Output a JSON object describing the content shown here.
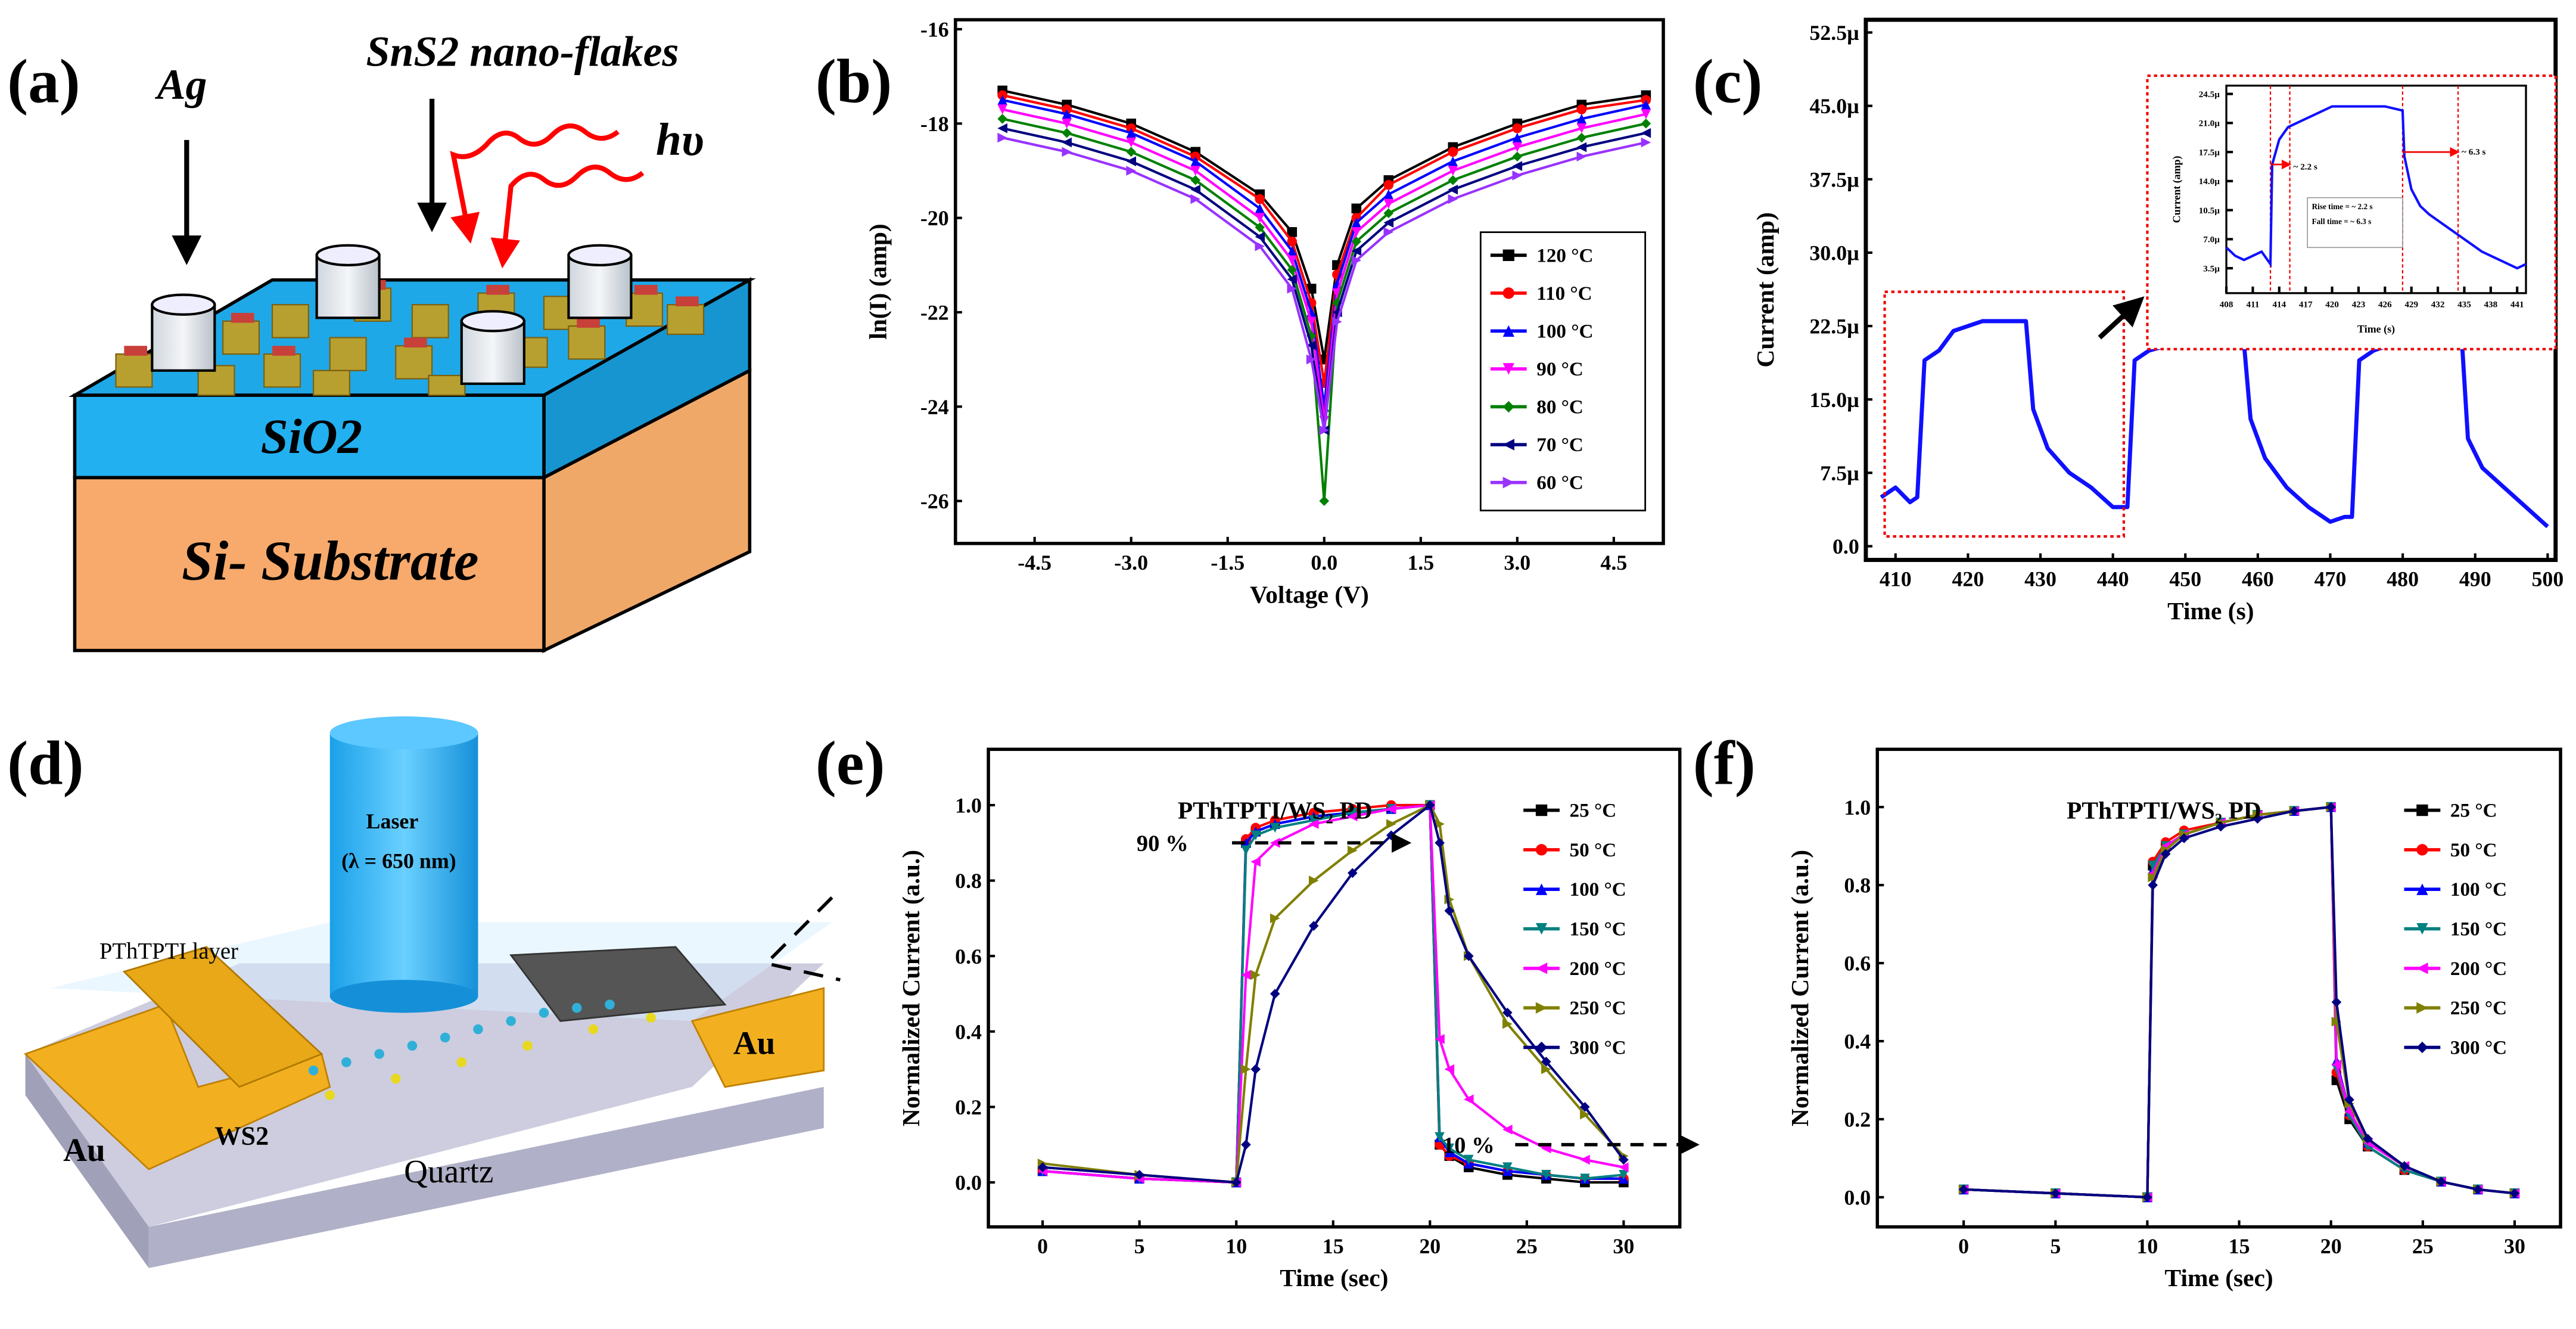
{
  "panel_labels": [
    "(a)",
    "(b)",
    "(c)",
    "(d)",
    "(e)",
    "(f)"
  ],
  "diagram_a": {
    "ag": "Ag",
    "flakes": "SnS2 nano-flakes",
    "light": "hυ",
    "oxide": "SiO2",
    "substrate": "Si- Substrate"
  },
  "diagram_d": {
    "laser": "Laser",
    "wavelength": "(λ = 650 nm)",
    "layer": "PThTPTI layer",
    "au_left": "Au",
    "au_right": "Au",
    "ws2": "WS2",
    "quartz": "Quartz"
  },
  "chart_data": [
    {
      "panel": "b",
      "type": "line",
      "xlabel": "Voltage (V)",
      "ylabel": "ln(I) (amp)",
      "xticks": [
        "-4.5",
        "-3.0",
        "-1.5",
        "0.0",
        "1.5",
        "3.0",
        "4.5"
      ],
      "yticks": [
        "-16",
        "-18",
        "-20",
        "-22",
        "-24",
        "-26"
      ],
      "xlim": [
        -5.73,
        5.27
      ],
      "ylim": [
        -26.9,
        -15.8
      ],
      "legend_position": "center-right",
      "x": [
        -5,
        -4,
        -3,
        -2,
        -1,
        -0.5,
        -0.2,
        0,
        0.2,
        0.5,
        1,
        2,
        3,
        4,
        5
      ],
      "series": [
        {
          "name": "120 °C",
          "color": "#000000",
          "marker": "square",
          "values": [
            -17.3,
            -17.6,
            -18.0,
            -18.6,
            -19.5,
            -20.3,
            -21.5,
            -23.0,
            -21.0,
            -19.8,
            -19.2,
            -18.5,
            -18.0,
            -17.6,
            -17.4
          ]
        },
        {
          "name": "110 °C",
          "color": "#ff0000",
          "marker": "circle",
          "values": [
            -17.4,
            -17.7,
            -18.1,
            -18.7,
            -19.6,
            -20.5,
            -21.8,
            -23.5,
            -21.2,
            -20.0,
            -19.3,
            -18.6,
            -18.1,
            -17.7,
            -17.5
          ]
        },
        {
          "name": "100 °C",
          "color": "#0000ff",
          "marker": "triangle-up",
          "values": [
            -17.5,
            -17.8,
            -18.2,
            -18.8,
            -19.8,
            -20.7,
            -22.0,
            -24.0,
            -21.4,
            -20.1,
            -19.5,
            -18.8,
            -18.3,
            -17.9,
            -17.6
          ]
        },
        {
          "name": "90 °C",
          "color": "#ff00ff",
          "marker": "triangle-down",
          "values": [
            -17.7,
            -18.0,
            -18.4,
            -19.0,
            -20.0,
            -20.9,
            -22.2,
            -24.3,
            -21.6,
            -20.3,
            -19.7,
            -19.0,
            -18.5,
            -18.1,
            -17.8
          ]
        },
        {
          "name": "80 °C",
          "color": "#008000",
          "marker": "diamond",
          "values": [
            -17.9,
            -18.2,
            -18.6,
            -19.2,
            -20.2,
            -21.1,
            -22.5,
            -26.0,
            -21.8,
            -20.5,
            -19.9,
            -19.2,
            -18.7,
            -18.3,
            -18.0
          ]
        },
        {
          "name": "70 °C",
          "color": "#000080",
          "marker": "triangle-left",
          "values": [
            -18.1,
            -18.4,
            -18.8,
            -19.4,
            -20.4,
            -21.3,
            -22.7,
            -24.5,
            -22.0,
            -20.7,
            -20.1,
            -19.4,
            -18.9,
            -18.5,
            -18.2
          ]
        },
        {
          "name": "60 °C",
          "color": "#9932ff",
          "marker": "triangle-right",
          "values": [
            -18.3,
            -18.6,
            -19.0,
            -19.6,
            -20.6,
            -21.5,
            -23.0,
            -24.5,
            -22.2,
            -20.9,
            -20.3,
            -19.6,
            -19.1,
            -18.7,
            -18.4
          ]
        }
      ]
    },
    {
      "panel": "c",
      "type": "line",
      "xlabel": "Time (s)",
      "ylabel": "Current (amp)",
      "xticks": [
        "410",
        "420",
        "430",
        "440",
        "450",
        "460",
        "470",
        "480",
        "490",
        "500"
      ],
      "yticks": [
        "0.0",
        "7.5µ",
        "15.0µ",
        "22.5µ",
        "30.0µ",
        "37.5µ",
        "45.0µ",
        "52.5µ"
      ],
      "xlim": [
        405.9,
        501.1
      ],
      "ylim": [
        -1.4,
        53.8
      ],
      "series": [
        {
          "name": "photocurrent",
          "color": "#1010ff",
          "x": [
            408,
            410,
            412,
            413,
            414,
            416,
            418,
            422,
            426,
            428,
            429,
            431,
            434,
            437,
            440,
            442,
            443,
            445,
            450,
            455,
            458,
            459,
            461,
            464,
            467,
            470,
            472,
            473,
            474,
            476,
            480,
            485,
            488,
            489,
            491,
            494,
            497,
            500
          ],
          "values": [
            5,
            6,
            4.5,
            5,
            19,
            20,
            22,
            23,
            23,
            23,
            14,
            10,
            7.5,
            6,
            4,
            4,
            19,
            20,
            21,
            21.5,
            21.5,
            13,
            9,
            6,
            4,
            2.5,
            3,
            3,
            19,
            20,
            21,
            22,
            23,
            11,
            8,
            6,
            4,
            2
          ]
        }
      ],
      "annotation": "inset shows region 408–441 s",
      "inset": {
        "xlabel": "Time (s)",
        "ylabel": "Current (amp)",
        "xticks": [
          "408",
          "411",
          "414",
          "417",
          "420",
          "423",
          "426",
          "429",
          "432",
          "435",
          "438",
          "441"
        ],
        "yticks": [
          "3.5µ",
          "7.0µ",
          "10.5µ",
          "14.0µ",
          "17.5µ",
          "21.0µ",
          "24.5µ"
        ],
        "xlim": [
          408,
          442
        ],
        "ylim": [
          0.5,
          25.5
        ],
        "x": [
          408,
          409,
          410,
          411,
          412,
          413,
          413.2,
          414,
          415,
          416,
          417,
          418,
          420,
          423,
          426,
          428,
          428.2,
          429,
          430,
          431,
          433,
          435,
          437,
          439,
          441,
          442
        ],
        "values": [
          6,
          5,
          4.5,
          5,
          5.5,
          4,
          16,
          19,
          20.5,
          21,
          21.5,
          22,
          23,
          23,
          23,
          22.5,
          17,
          13,
          11,
          10,
          8.5,
          7,
          5.5,
          4.5,
          3.5,
          4
        ],
        "rise_label": "~ 2.2 s",
        "fall_label": "~ 6.3 s",
        "box_lines": [
          "Rise time = ~ 2.2 s",
          "Fall time = ~ 6.3 s"
        ],
        "markers_x": [
          413,
          415.2,
          428,
          434.3
        ]
      }
    },
    {
      "panel": "e",
      "type": "line",
      "title": "PThTPTI/WS₂ PD",
      "xlabel": "Time (sec)",
      "ylabel": "Normalized Current (a.u.)",
      "xticks": [
        "0",
        "5",
        "10",
        "15",
        "20",
        "25",
        "30"
      ],
      "yticks": [
        "0.0",
        "0.2",
        "0.4",
        "0.6",
        "0.8",
        "1.0"
      ],
      "xlim": [
        -2.8,
        32.9
      ],
      "ylim": [
        -0.118,
        1.148
      ],
      "annotations": [
        "90 %",
        "10 %"
      ],
      "legend_position": "top-right",
      "x": [
        0,
        5,
        10,
        10.5,
        11,
        12,
        14,
        16,
        18,
        20,
        20.5,
        21,
        22,
        24,
        26,
        28,
        30
      ],
      "series": [
        {
          "name": "25 °C",
          "color": "#000000",
          "marker": "square",
          "values": [
            0.03,
            0.01,
            0,
            0.9,
            0.93,
            0.95,
            0.97,
            0.98,
            0.99,
            1.0,
            0.1,
            0.07,
            0.04,
            0.02,
            0.01,
            0.0,
            0.0
          ]
        },
        {
          "name": "50 °C",
          "color": "#ff0000",
          "marker": "circle",
          "values": [
            0.03,
            0.01,
            0,
            0.91,
            0.94,
            0.96,
            0.98,
            0.99,
            1.0,
            1.0,
            0.1,
            0.07,
            0.05,
            0.03,
            0.02,
            0.01,
            0.01
          ]
        },
        {
          "name": "100 °C",
          "color": "#0000ff",
          "marker": "triangle-up",
          "values": [
            0.03,
            0.01,
            0,
            0.9,
            0.93,
            0.95,
            0.97,
            0.98,
            0.99,
            1.0,
            0.12,
            0.08,
            0.05,
            0.03,
            0.02,
            0.01,
            0.01
          ]
        },
        {
          "name": "150 °C",
          "color": "#008080",
          "marker": "triangle-down",
          "values": [
            0.03,
            0.01,
            0,
            0.88,
            0.92,
            0.94,
            0.96,
            0.98,
            0.99,
            1.0,
            0.12,
            0.09,
            0.06,
            0.04,
            0.02,
            0.01,
            0.02
          ]
        },
        {
          "name": "200 °C",
          "color": "#ff00ff",
          "marker": "triangle-left",
          "values": [
            0.03,
            0.01,
            0,
            0.55,
            0.85,
            0.9,
            0.95,
            0.97,
            0.99,
            1.0,
            0.38,
            0.3,
            0.22,
            0.14,
            0.09,
            0.06,
            0.04
          ]
        },
        {
          "name": "250 °C",
          "color": "#808000",
          "marker": "triangle-right",
          "values": [
            0.05,
            0.02,
            0,
            0.3,
            0.55,
            0.7,
            0.8,
            0.88,
            0.95,
            1.0,
            0.95,
            0.75,
            0.6,
            0.42,
            0.3,
            0.18,
            0.07
          ]
        },
        {
          "name": "300 °C",
          "color": "#000080",
          "marker": "diamond",
          "values": [
            0.04,
            0.02,
            0,
            0.1,
            0.3,
            0.5,
            0.68,
            0.82,
            0.92,
            1.0,
            0.9,
            0.72,
            0.6,
            0.45,
            0.32,
            0.2,
            0.06
          ]
        }
      ]
    },
    {
      "panel": "f",
      "type": "line",
      "title": "PThTPTI/WS₂ PD",
      "xlabel": "Time (sec)",
      "ylabel": "Normalized Current (a.u.)",
      "xticks": [
        "0",
        "5",
        "10",
        "15",
        "20",
        "25",
        "30"
      ],
      "yticks": [
        "0.0",
        "0.2",
        "0.4",
        "0.6",
        "0.8",
        "1.0"
      ],
      "xlim": [
        -4.7,
        32.5
      ],
      "ylim": [
        -0.076,
        1.148
      ],
      "legend_position": "top-right",
      "x": [
        0,
        5,
        10,
        10.3,
        11,
        12,
        14,
        16,
        18,
        20,
        20.3,
        21,
        22,
        24,
        26,
        28,
        30
      ],
      "series": [
        {
          "name": "25 °C",
          "color": "#000000",
          "marker": "square",
          "values": [
            0.02,
            0.01,
            0,
            0.85,
            0.9,
            0.93,
            0.96,
            0.98,
            0.99,
            1.0,
            0.3,
            0.2,
            0.13,
            0.07,
            0.04,
            0.02,
            0.01
          ]
        },
        {
          "name": "50 °C",
          "color": "#ff0000",
          "marker": "circle",
          "values": [
            0.02,
            0.01,
            0,
            0.86,
            0.91,
            0.94,
            0.96,
            0.98,
            0.99,
            1.0,
            0.32,
            0.21,
            0.13,
            0.07,
            0.04,
            0.02,
            0.01
          ]
        },
        {
          "name": "100 °C",
          "color": "#0000ff",
          "marker": "triangle-up",
          "values": [
            0.02,
            0.01,
            0,
            0.84,
            0.9,
            0.93,
            0.96,
            0.98,
            0.99,
            1.0,
            0.35,
            0.22,
            0.14,
            0.08,
            0.04,
            0.02,
            0.01
          ]
        },
        {
          "name": "150 °C",
          "color": "#008080",
          "marker": "triangle-down",
          "values": [
            0.02,
            0.01,
            0,
            0.85,
            0.9,
            0.93,
            0.96,
            0.98,
            0.99,
            1.0,
            0.33,
            0.21,
            0.13,
            0.07,
            0.04,
            0.02,
            0.01
          ]
        },
        {
          "name": "200 °C",
          "color": "#ff00ff",
          "marker": "triangle-left",
          "values": [
            0.02,
            0.01,
            0,
            0.83,
            0.9,
            0.93,
            0.96,
            0.98,
            0.99,
            1.0,
            0.34,
            0.22,
            0.14,
            0.08,
            0.04,
            0.02,
            0.01
          ]
        },
        {
          "name": "250 °C",
          "color": "#808000",
          "marker": "triangle-right",
          "values": [
            0.02,
            0.01,
            0,
            0.82,
            0.89,
            0.93,
            0.96,
            0.98,
            0.99,
            1.0,
            0.45,
            0.24,
            0.15,
            0.08,
            0.04,
            0.02,
            0.01
          ]
        },
        {
          "name": "300 °C",
          "color": "#000080",
          "marker": "diamond",
          "values": [
            0.02,
            0.01,
            0,
            0.8,
            0.88,
            0.92,
            0.95,
            0.97,
            0.99,
            1.0,
            0.5,
            0.25,
            0.15,
            0.08,
            0.04,
            0.02,
            0.01
          ]
        }
      ]
    }
  ]
}
